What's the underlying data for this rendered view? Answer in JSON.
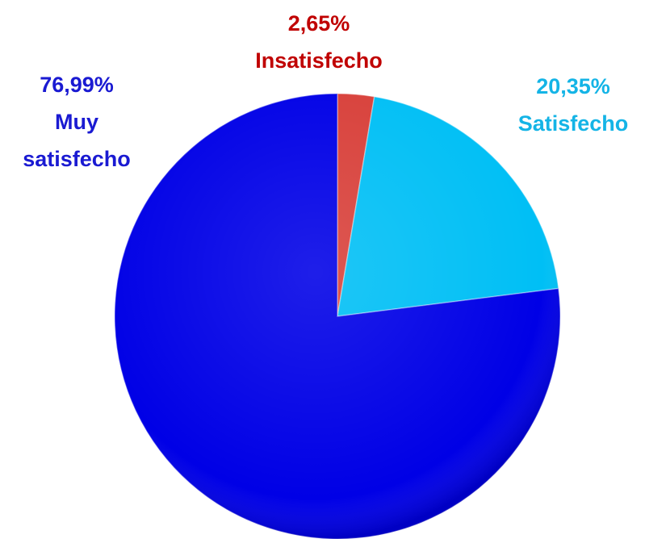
{
  "chart_data": {
    "type": "pie",
    "categories": [
      "Insatisfecho",
      "Satisfecho",
      "Muy satisfecho"
    ],
    "values": [
      2.65,
      20.35,
      76.99
    ],
    "value_labels": [
      "2,65%",
      "20,35%",
      "76,99%"
    ],
    "colors": [
      "#d8403a",
      "#00bff5",
      "#0000e6"
    ]
  }
}
